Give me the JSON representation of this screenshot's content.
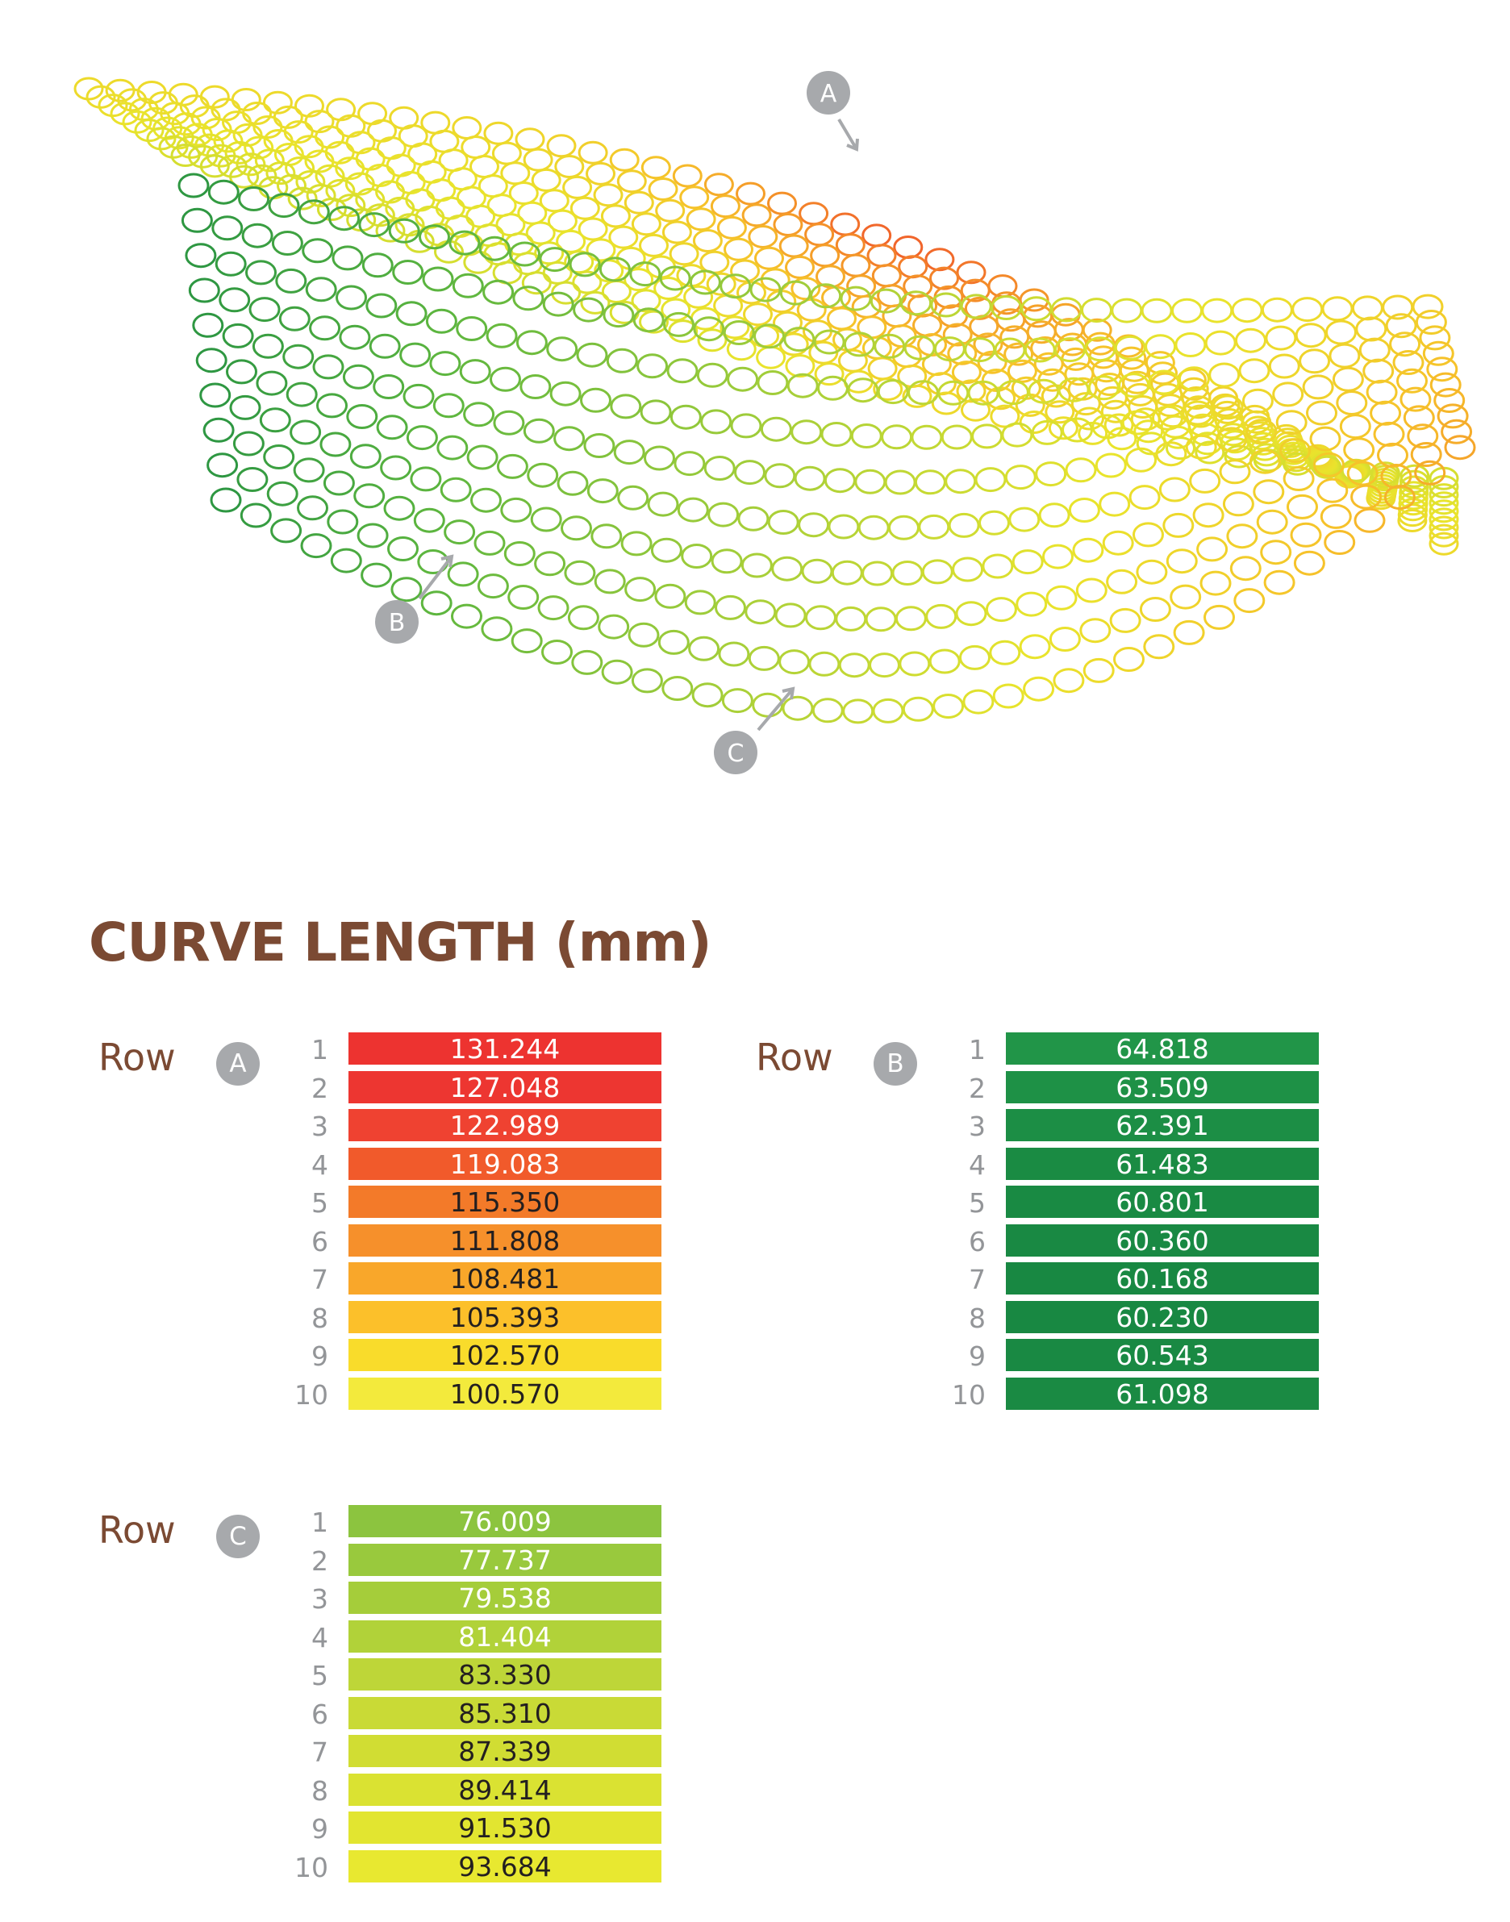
{
  "mesh_markers": [
    {
      "id": "A",
      "label": "A"
    },
    {
      "id": "B",
      "label": "B"
    },
    {
      "id": "C",
      "label": "C"
    }
  ],
  "title": "CURVE LENGTH (mm)",
  "tables": [
    {
      "id": "A",
      "row_word": "Row",
      "badge": "A",
      "rows": [
        {
          "num": "1",
          "value": "131.244",
          "color": "#ed3330",
          "text_color": "#ffffff"
        },
        {
          "num": "2",
          "value": "127.048",
          "color": "#ed3631",
          "text_color": "#ffffff"
        },
        {
          "num": "3",
          "value": "122.989",
          "color": "#ef4231",
          "text_color": "#ffffff"
        },
        {
          "num": "4",
          "value": "119.083",
          "color": "#f15a2b",
          "text_color": "#ffffff"
        },
        {
          "num": "5",
          "value": "115.350",
          "color": "#f37a29",
          "text_color": "#231f20"
        },
        {
          "num": "6",
          "value": "111.808",
          "color": "#f6902b",
          "text_color": "#231f20"
        },
        {
          "num": "7",
          "value": "108.481",
          "color": "#f9a72a",
          "text_color": "#231f20"
        },
        {
          "num": "8",
          "value": "105.393",
          "color": "#fcc02a",
          "text_color": "#231f20"
        },
        {
          "num": "9",
          "value": "102.570",
          "color": "#f9dc2b",
          "text_color": "#231f20"
        },
        {
          "num": "10",
          "value": "100.570",
          "color": "#f3ea3c",
          "text_color": "#231f20"
        }
      ]
    },
    {
      "id": "B",
      "row_word": "Row",
      "badge": "B",
      "rows": [
        {
          "num": "1",
          "value": "64.818",
          "color": "#219548",
          "text_color": "#ffffff"
        },
        {
          "num": "2",
          "value": "63.509",
          "color": "#1e9146",
          "text_color": "#ffffff"
        },
        {
          "num": "3",
          "value": "62.391",
          "color": "#1c8e45",
          "text_color": "#ffffff"
        },
        {
          "num": "4",
          "value": "61.483",
          "color": "#1a8b43",
          "text_color": "#ffffff"
        },
        {
          "num": "5",
          "value": "60.801",
          "color": "#198a43",
          "text_color": "#ffffff"
        },
        {
          "num": "6",
          "value": "60.360",
          "color": "#198943",
          "text_color": "#ffffff"
        },
        {
          "num": "7",
          "value": "60.168",
          "color": "#188842",
          "text_color": "#ffffff"
        },
        {
          "num": "8",
          "value": "60.230",
          "color": "#188842",
          "text_color": "#ffffff"
        },
        {
          "num": "9",
          "value": "60.543",
          "color": "#198943",
          "text_color": "#ffffff"
        },
        {
          "num": "10",
          "value": "61.098",
          "color": "#1a8a43",
          "text_color": "#ffffff"
        }
      ]
    },
    {
      "id": "C",
      "row_word": "Row",
      "badge": "C",
      "rows": [
        {
          "num": "1",
          "value": "76.009",
          "color": "#8cc43f",
          "text_color": "#ffffff"
        },
        {
          "num": "2",
          "value": "77.737",
          "color": "#99c93d",
          "text_color": "#ffffff"
        },
        {
          "num": "3",
          "value": "79.538",
          "color": "#a5cd3a",
          "text_color": "#ffffff"
        },
        {
          "num": "4",
          "value": "81.404",
          "color": "#b1d239",
          "text_color": "#ffffff"
        },
        {
          "num": "5",
          "value": "83.330",
          "color": "#bed638",
          "text_color": "#231f20"
        },
        {
          "num": "6",
          "value": "85.310",
          "color": "#c9da36",
          "text_color": "#231f20"
        },
        {
          "num": "7",
          "value": "87.339",
          "color": "#d1dd33",
          "text_color": "#231f20"
        },
        {
          "num": "8",
          "value": "89.414",
          "color": "#dae232",
          "text_color": "#231f20"
        },
        {
          "num": "9",
          "value": "91.530",
          "color": "#e2e530",
          "text_color": "#231f20"
        },
        {
          "num": "10",
          "value": "93.684",
          "color": "#e8e830",
          "text_color": "#231f20"
        }
      ]
    }
  ]
}
